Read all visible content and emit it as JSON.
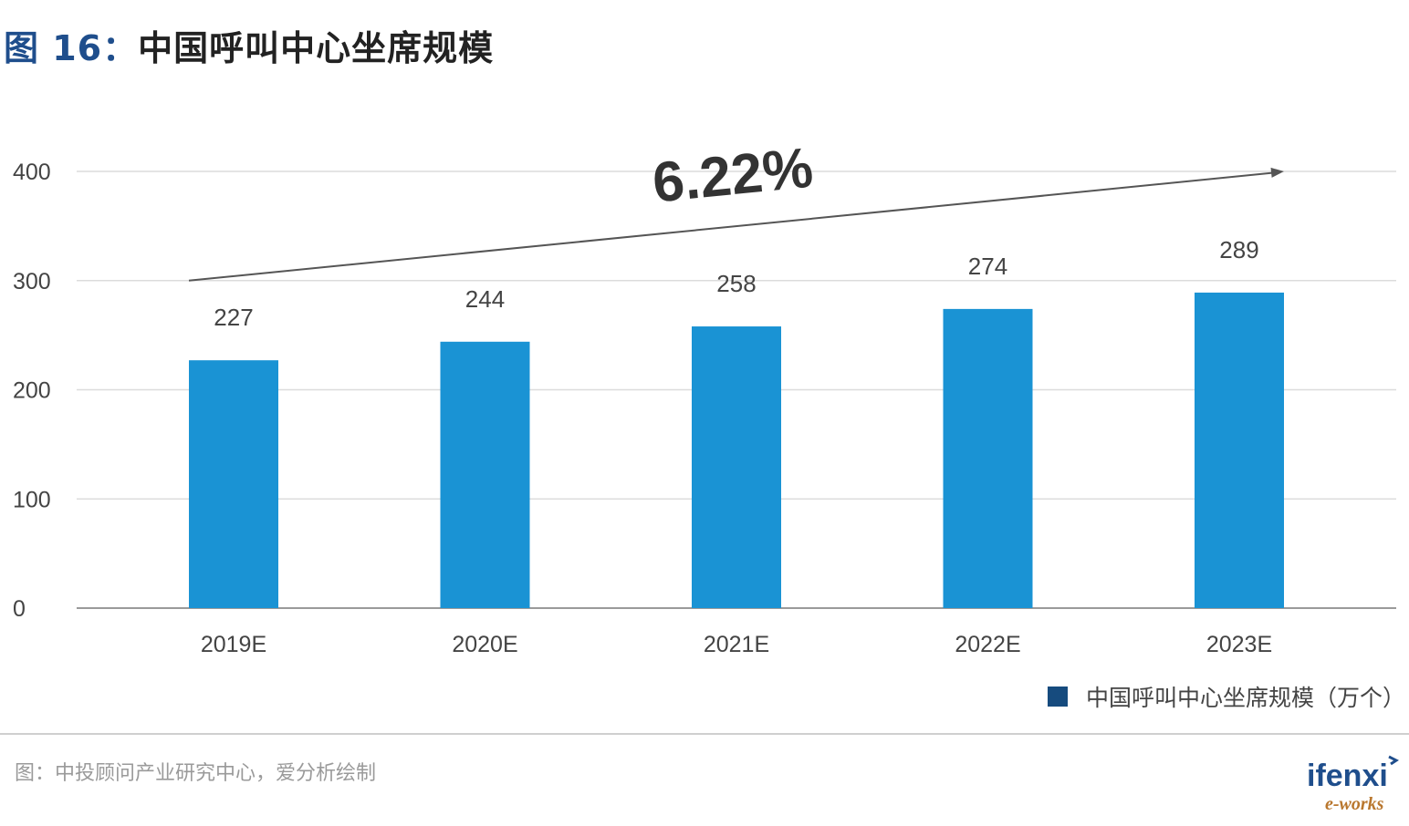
{
  "title": {
    "figure": "图 16：",
    "main": "中国呼叫中心坐席规模"
  },
  "colors": {
    "bar": "#1a93d4",
    "legend_swatch": "#164b7e",
    "title_prefix": "#1f4e8c",
    "grid": "#dcdcdc",
    "axis": "#9a9a9a"
  },
  "chart_data": {
    "type": "bar",
    "categories": [
      "2019E",
      "2020E",
      "2021E",
      "2022E",
      "2023E"
    ],
    "series": [
      {
        "name": "中国呼叫中心坐席规模（万个）",
        "values": [
          227,
          244,
          258,
          274,
          289
        ]
      }
    ],
    "data_labels": [
      "227",
      "244",
      "258",
      "274",
      "289"
    ],
    "ylim": [
      0,
      400
    ],
    "yticks": [
      0,
      100,
      200,
      300,
      400
    ],
    "ytick_labels": [
      "0",
      "100",
      "200",
      "300",
      "400"
    ],
    "grid": true,
    "legend_position": "bottom-right",
    "annotation": {
      "text": "6.22%",
      "arrow_from": [
        "2019E",
        300
      ],
      "arrow_to": [
        "2023E",
        400
      ]
    }
  },
  "legend": {
    "label": "中国呼叫中心坐席规模（万个）"
  },
  "source": "图：中投顾问产业研究中心，爱分析绘制",
  "logo": {
    "text": "ifenxi",
    "subtext": "e-works"
  }
}
